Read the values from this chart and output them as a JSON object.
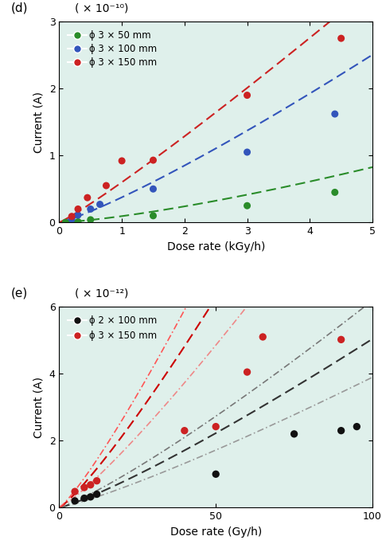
{
  "panel_d": {
    "label": "(d)",
    "unit_label": "( × 10⁻¹⁰)",
    "xlabel": "Dose rate (kGy/h)",
    "ylabel": "Current (A)",
    "xlim": [
      0,
      5
    ],
    "ylim": [
      0,
      3
    ],
    "yticks": [
      0,
      1,
      2,
      3
    ],
    "xticks": [
      0,
      1,
      2,
      3,
      4,
      5
    ],
    "bg_color": "#dff0eb",
    "series": [
      {
        "label": "ϕ 3 × 50 mm",
        "color": "#2a8c2a",
        "scatter_x": [
          0.1,
          0.2,
          0.3,
          0.5,
          1.5,
          3.0,
          4.4
        ],
        "scatter_y": [
          0.0,
          0.0,
          0.01,
          0.04,
          0.1,
          0.25,
          0.45
        ],
        "fit_coef": 0.094,
        "fit_exp": 1.35
      },
      {
        "label": "ϕ 3 × 100 mm",
        "color": "#3355bb",
        "scatter_x": [
          0.2,
          0.3,
          0.5,
          0.65,
          1.5,
          3.0,
          4.4
        ],
        "scatter_y": [
          0.05,
          0.11,
          0.2,
          0.27,
          0.5,
          1.05,
          1.62
        ],
        "fit_coef": 0.375,
        "fit_exp": 1.18
      },
      {
        "label": "ϕ 3 × 150 mm",
        "color": "#cc2222",
        "scatter_x": [
          0.2,
          0.3,
          0.45,
          0.75,
          1.0,
          1.5,
          3.0,
          4.5
        ],
        "scatter_y": [
          0.09,
          0.2,
          0.37,
          0.55,
          0.92,
          0.93,
          1.9,
          2.75
        ],
        "fit_coef": 0.6,
        "fit_exp": 1.1
      }
    ]
  },
  "panel_e": {
    "label": "(e)",
    "unit_label": "( × 10⁻¹²)",
    "xlabel": "Dose rate (Gy/h)",
    "ylabel": "Current (A)",
    "xlim": [
      0,
      100
    ],
    "ylim": [
      0,
      6
    ],
    "yticks": [
      0,
      2,
      4,
      6
    ],
    "xticks": [
      0,
      50,
      100
    ],
    "bg_color": "#dff0eb",
    "series": [
      {
        "label": "ϕ 2 × 100 mm",
        "color": "#111111",
        "scatter_x": [
          5,
          8,
          10,
          12,
          50,
          75,
          90,
          95
        ],
        "scatter_y": [
          0.2,
          0.28,
          0.32,
          0.4,
          1.0,
          2.2,
          2.3,
          2.42
        ],
        "fit_lines": [
          {
            "coef": 0.017,
            "exp": 1.18,
            "color": "#999999",
            "linestyle": "-."
          },
          {
            "coef": 0.022,
            "exp": 1.18,
            "color": "#333333",
            "linestyle": "--"
          },
          {
            "coef": 0.027,
            "exp": 1.18,
            "color": "#777777",
            "linestyle": "-."
          }
        ]
      },
      {
        "label": "ϕ 3 × 150 mm",
        "color": "#cc2222",
        "scatter_x": [
          5,
          8,
          10,
          12,
          40,
          50,
          60,
          65,
          90
        ],
        "scatter_y": [
          0.48,
          0.6,
          0.68,
          0.8,
          2.3,
          2.42,
          4.05,
          5.1,
          5.02
        ],
        "fit_lines": [
          {
            "coef": 0.048,
            "exp": 1.18,
            "color": "#ee8888",
            "linestyle": "-."
          },
          {
            "coef": 0.062,
            "exp": 1.18,
            "color": "#cc0000",
            "linestyle": "--"
          },
          {
            "coef": 0.076,
            "exp": 1.18,
            "color": "#ff5555",
            "linestyle": "-."
          }
        ]
      }
    ]
  }
}
